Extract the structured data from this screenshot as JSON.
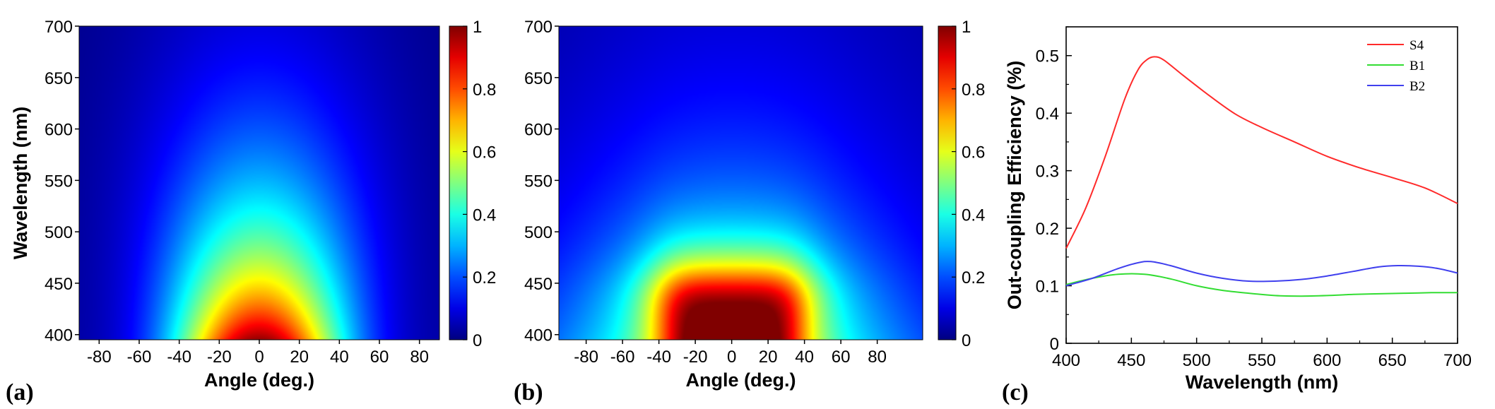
{
  "chart_data": [
    {
      "type": "heatmap",
      "panel_label": "(a)",
      "xlabel": "Angle (deg.)",
      "ylabel": "Wavelength (nm)",
      "xlim": [
        -90,
        90
      ],
      "ylim": [
        395,
        700
      ],
      "x_ticks": [
        -80,
        -60,
        -40,
        -20,
        0,
        20,
        40,
        60,
        80
      ],
      "y_ticks": [
        400,
        450,
        500,
        550,
        600,
        650,
        700
      ],
      "colorbar": {
        "range": [
          0,
          1
        ],
        "ticks": [
          "0",
          "0.2",
          "0.4",
          "0.6",
          "0.8",
          "1"
        ],
        "colormap": "jet"
      },
      "profile": {
        "peak_angle": 0,
        "peak_wavelength": 400,
        "peak_value": 0.95,
        "angle_halfwidth_at_400nm": 55,
        "wavelength_falloff_nm": 130,
        "shape": "dome"
      }
    },
    {
      "type": "heatmap",
      "panel_label": "(b)",
      "xlabel": "Angle (deg.)",
      "ylabel": "",
      "xlim": [
        -95,
        105
      ],
      "ylim": [
        395,
        700
      ],
      "x_ticks": [
        -80,
        -60,
        -40,
        -20,
        0,
        20,
        40,
        60,
        80
      ],
      "y_ticks": [
        400,
        450,
        500,
        550,
        600,
        650,
        700
      ],
      "colorbar": {
        "range": [
          0,
          1
        ],
        "ticks": [
          "0",
          "0.2",
          "0.4",
          "0.6",
          "0.8",
          "1"
        ],
        "colormap": "jet"
      },
      "profile": {
        "peak_angle": 0,
        "peak_wavelength": 400,
        "peak_value": 0.95,
        "flat_top_angle": 40,
        "flat_top_wavelength": 465,
        "shape": "flat-top"
      }
    },
    {
      "type": "line",
      "panel_label": "(c)",
      "xlabel": "Wavelength (nm)",
      "ylabel": "Out-coupling Efficiency (%)",
      "xlim": [
        400,
        700
      ],
      "ylim": [
        0,
        0.55
      ],
      "x_ticks": [
        400,
        450,
        500,
        550,
        600,
        650,
        700
      ],
      "y_ticks": [
        0,
        0.1,
        0.2,
        0.3,
        0.4,
        0.5
      ],
      "legend_position": "top-right",
      "series": [
        {
          "name": "S4",
          "color": "#ff2a2a",
          "x": [
            400,
            415,
            430,
            445,
            455,
            462,
            468,
            475,
            490,
            510,
            530,
            550,
            575,
            600,
            625,
            650,
            675,
            700
          ],
          "y": [
            0.165,
            0.235,
            0.325,
            0.425,
            0.475,
            0.493,
            0.498,
            0.492,
            0.465,
            0.43,
            0.398,
            0.375,
            0.35,
            0.325,
            0.305,
            0.288,
            0.27,
            0.243
          ]
        },
        {
          "name": "B1",
          "color": "#33dd33",
          "x": [
            400,
            420,
            440,
            460,
            480,
            500,
            520,
            540,
            560,
            580,
            600,
            620,
            640,
            660,
            680,
            700
          ],
          "y": [
            0.102,
            0.113,
            0.12,
            0.12,
            0.112,
            0.1,
            0.092,
            0.087,
            0.083,
            0.082,
            0.083,
            0.085,
            0.086,
            0.087,
            0.088,
            0.088
          ]
        },
        {
          "name": "B2",
          "color": "#4040ee",
          "x": [
            400,
            420,
            440,
            455,
            465,
            480,
            500,
            520,
            540,
            560,
            580,
            600,
            620,
            640,
            655,
            670,
            685,
            700
          ],
          "y": [
            0.1,
            0.113,
            0.13,
            0.14,
            0.142,
            0.135,
            0.122,
            0.113,
            0.108,
            0.108,
            0.111,
            0.117,
            0.125,
            0.133,
            0.135,
            0.134,
            0.13,
            0.122
          ]
        }
      ]
    }
  ]
}
